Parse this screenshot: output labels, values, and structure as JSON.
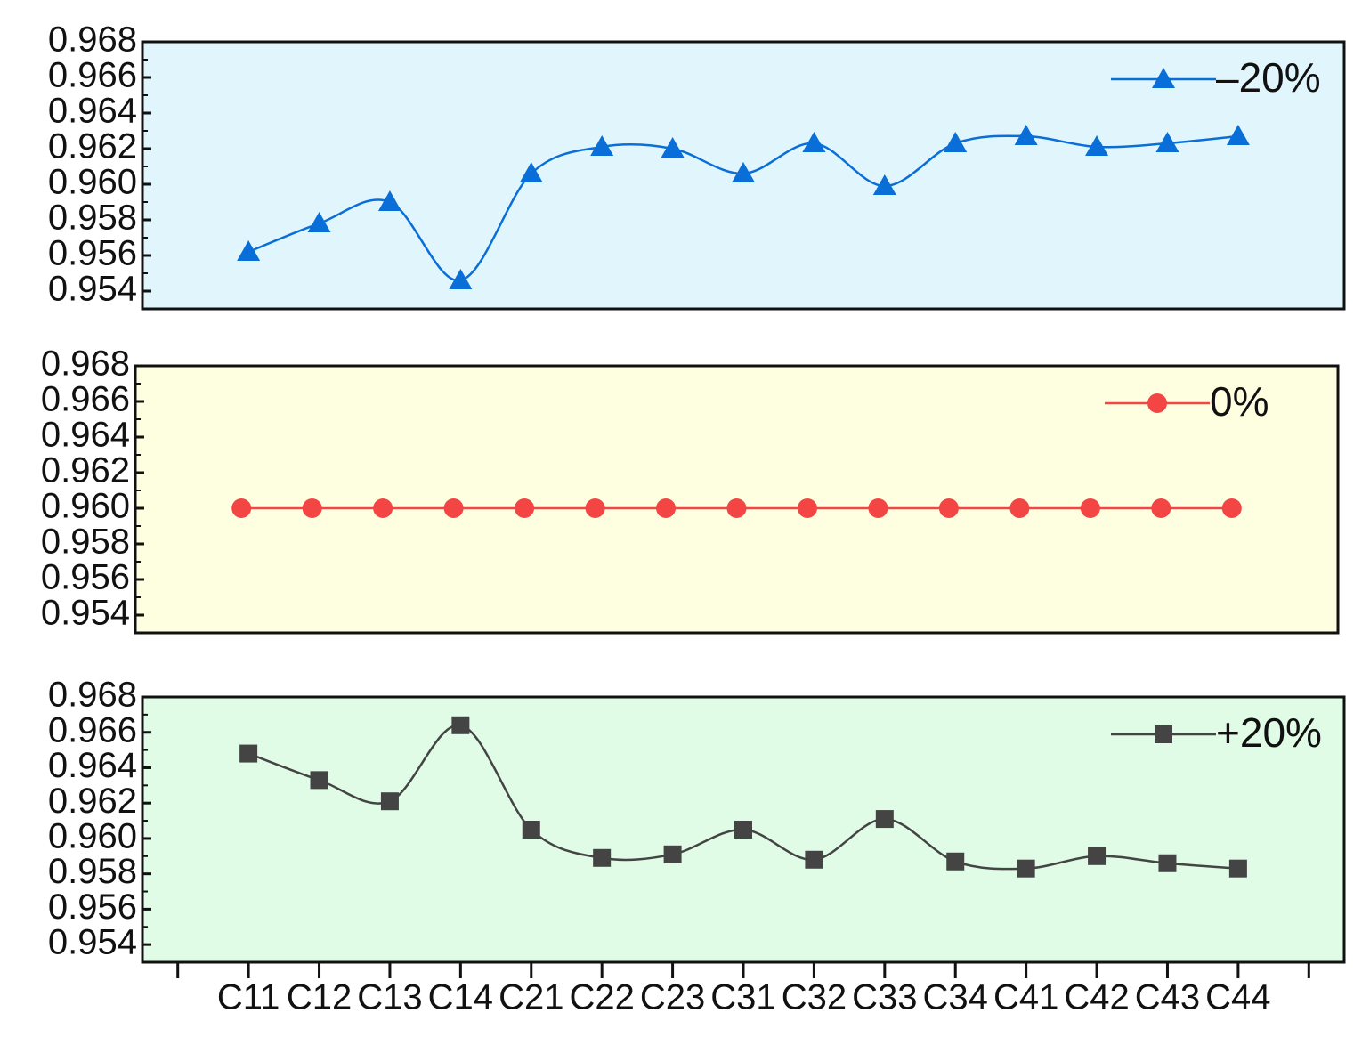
{
  "chart_data": [
    {
      "type": "line",
      "smooth": true,
      "background": "#e0f6fc",
      "legend": "upper right",
      "ylim": [
        0.953,
        0.968
      ],
      "yticks": [
        0.954,
        0.956,
        0.958,
        {
          "value": 0.96,
          "label": "0.960"
        },
        0.962,
        0.964,
        0.966,
        0.968
      ],
      "series": [
        {
          "name": "–20%",
          "color": "#0a6ed8",
          "marker": "triangle",
          "values": [
            0.9562,
            0.9578,
            0.959,
            0.9546,
            0.9606,
            0.9621,
            0.962,
            0.9606,
            0.9623,
            0.9599,
            0.9623,
            0.9627,
            0.9621,
            0.9623,
            0.9627
          ]
        }
      ]
    },
    {
      "type": "line",
      "smooth": true,
      "background": "#fefee0",
      "legend": "upper right",
      "ylim": [
        0.953,
        0.968
      ],
      "yticks": [
        0.954,
        0.956,
        0.958,
        {
          "value": 0.96,
          "label": "0.960"
        },
        0.962,
        0.964,
        0.966,
        0.968
      ],
      "series": [
        {
          "name": "0%",
          "color": "#f44545",
          "marker": "circle",
          "values": [
            0.96,
            0.96,
            0.96,
            0.96,
            0.96,
            0.96,
            0.96,
            0.96,
            0.96,
            0.96,
            0.96,
            0.96,
            0.96,
            0.96,
            0.96
          ]
        }
      ]
    },
    {
      "type": "line",
      "smooth": true,
      "background": "#e0fce6",
      "legend": "upper right",
      "ylim": [
        0.953,
        0.968
      ],
      "yticks": [
        0.954,
        0.956,
        0.958,
        {
          "value": 0.96,
          "label": "0.960"
        },
        0.962,
        0.964,
        0.966,
        0.968
      ],
      "categories": [
        "C11",
        "C12",
        "C13",
        "C14",
        "C21",
        "C22",
        "C23",
        "C31",
        "C32",
        "C33",
        "C34",
        "C41",
        "C42",
        "C43",
        "C44"
      ],
      "series": [
        {
          "name": "+20%",
          "color": "#444444",
          "marker": "square",
          "values": [
            0.9648,
            0.9633,
            0.9621,
            0.9664,
            0.9605,
            0.9589,
            0.9591,
            0.9605,
            0.9588,
            0.9611,
            0.9587,
            0.9583,
            0.959,
            0.9586,
            0.9583
          ]
        }
      ]
    }
  ]
}
